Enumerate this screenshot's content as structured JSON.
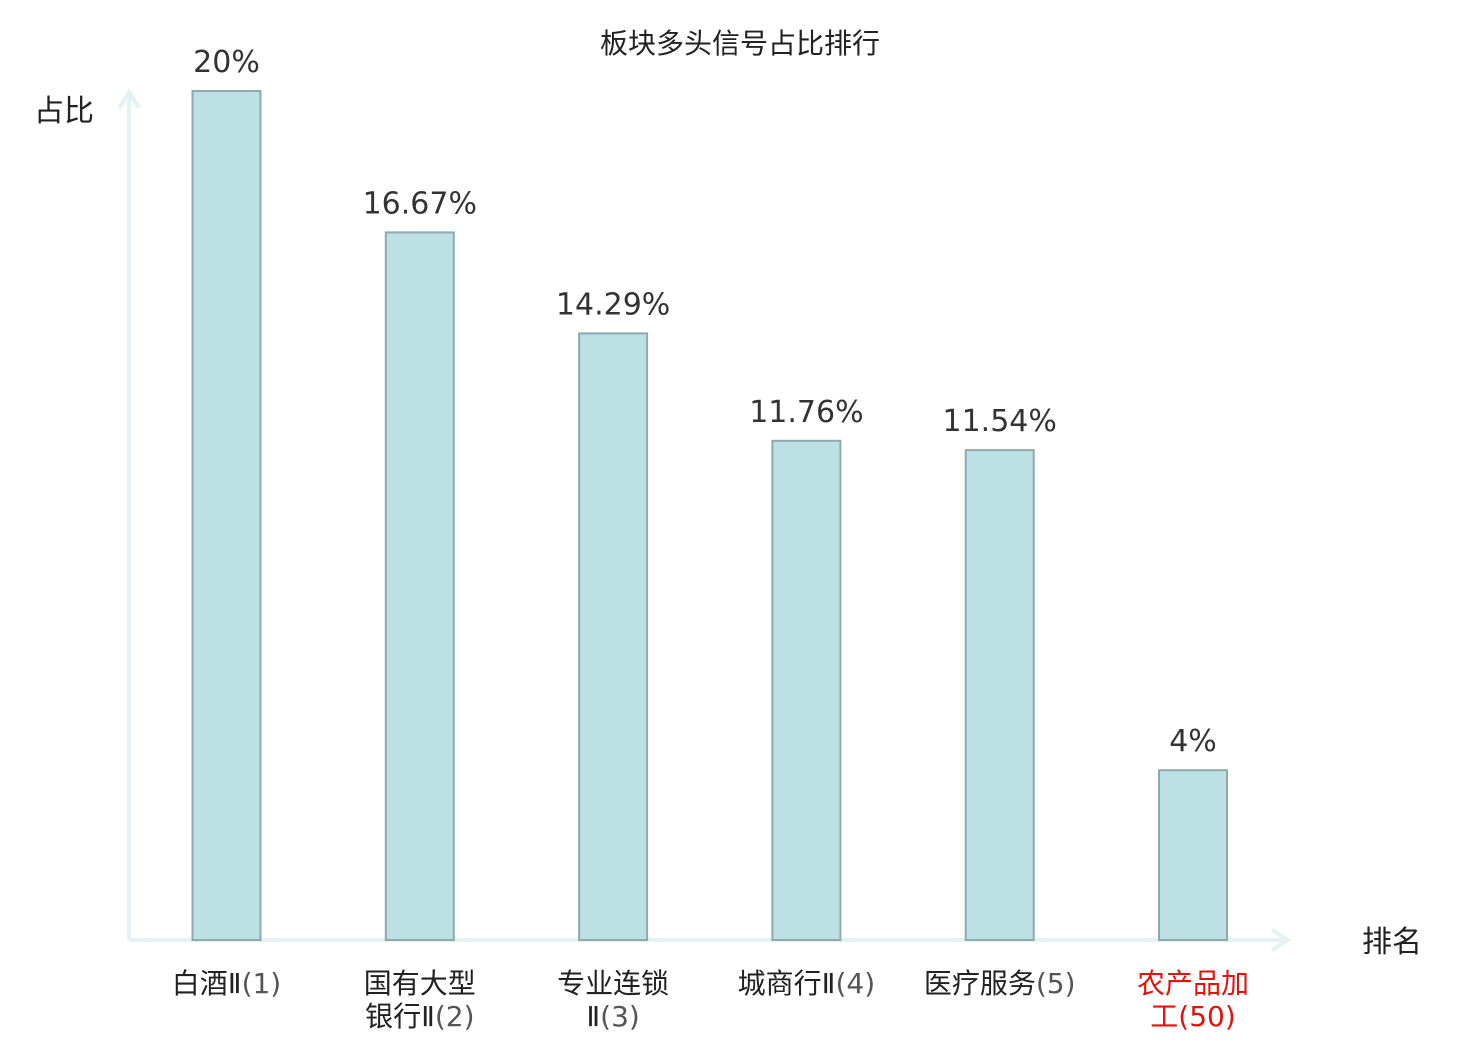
{
  "chart_data": {
    "type": "bar",
    "title": "板块多头信号占比排行",
    "ylabel": "占比",
    "xlabel": "排名",
    "ylim": [
      0,
      20
    ],
    "grid": false,
    "legend": "none",
    "colors": {
      "bar_fill": "#bce0e3",
      "bar_stroke": "#8fa9ac",
      "axis": "#e3f3f1",
      "highlight_text": "#e3120b"
    },
    "categories": [
      {
        "lines": [
          "白酒Ⅱ"
        ],
        "rank": "(1)",
        "highlight": false
      },
      {
        "lines": [
          "国有大型",
          "银行Ⅱ"
        ],
        "rank": "(2)",
        "highlight": false
      },
      {
        "lines": [
          "专业连锁",
          "Ⅱ"
        ],
        "rank": "(3)",
        "highlight": false
      },
      {
        "lines": [
          "城商行Ⅱ"
        ],
        "rank": "(4)",
        "highlight": false
      },
      {
        "lines": [
          "医疗服务"
        ],
        "rank": "(5)",
        "highlight": false
      },
      {
        "lines": [
          "农产品加",
          "工"
        ],
        "rank": "(50)",
        "highlight": true
      }
    ],
    "values": [
      20,
      16.67,
      14.29,
      11.76,
      11.54,
      4
    ],
    "value_labels": [
      "20%",
      "16.67%",
      "14.29%",
      "11.76%",
      "11.54%",
      "4%"
    ]
  }
}
